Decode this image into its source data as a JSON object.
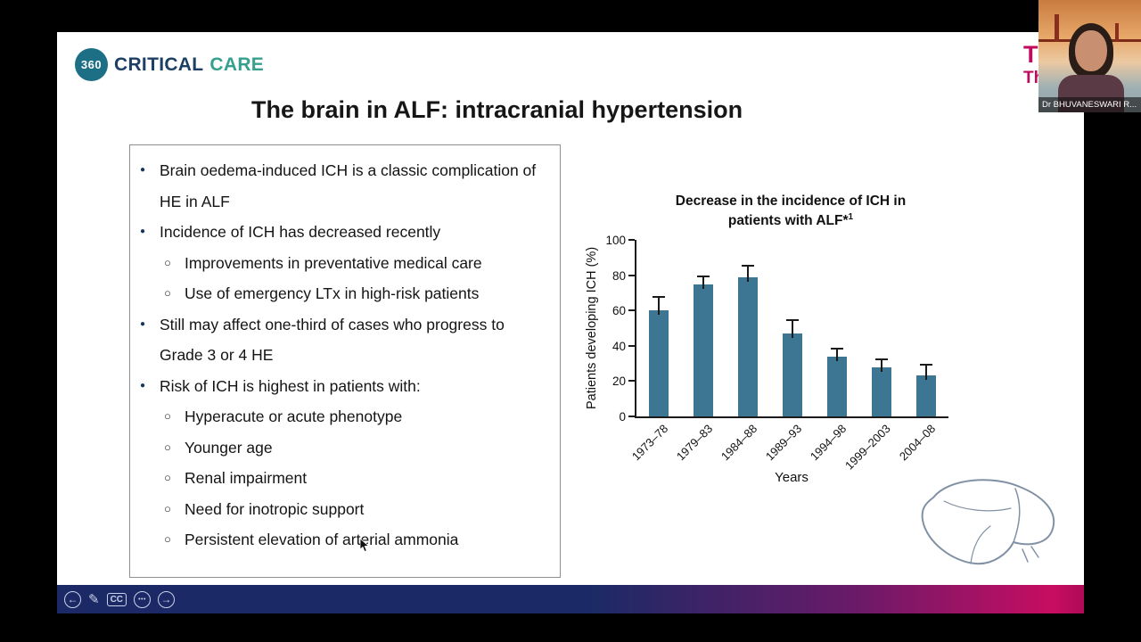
{
  "header": {
    "logo": {
      "circle_text": "360",
      "word1": "CRITICAL",
      "word2": "CARE"
    },
    "partial_logo": {
      "line1": "T",
      "line2": "Th"
    }
  },
  "slide": {
    "title": "The brain in ALF: intracranial hypertension",
    "bullets": [
      {
        "level": 1,
        "text": "Brain oedema-induced ICH is a classic complication of HE in ALF"
      },
      {
        "level": 1,
        "text": "Incidence of ICH has decreased recently"
      },
      {
        "level": 2,
        "text": "Improvements in preventative medical care"
      },
      {
        "level": 2,
        "text": "Use of emergency LTx in high-risk patients"
      },
      {
        "level": 1,
        "text": "Still may affect one-third of cases who progress to Grade 3 or 4 HE"
      },
      {
        "level": 1,
        "text": "Risk of ICH is highest in patients with:"
      },
      {
        "level": 2,
        "text": "Hyperacute or acute phenotype"
      },
      {
        "level": 2,
        "text": "Younger age"
      },
      {
        "level": 2,
        "text": "Renal impairment"
      },
      {
        "level": 2,
        "text": "Need for inotropic support"
      },
      {
        "level": 2,
        "text": "Persistent elevation of arterial ammonia"
      }
    ]
  },
  "chart_data": {
    "type": "bar",
    "title": "Decrease in the incidence of ICH in patients with ALF*",
    "title_sup": "1",
    "categories": [
      "1973–78",
      "1979–83",
      "1984–88",
      "1989–93",
      "1994–98",
      "1999–2003",
      "2004–08"
    ],
    "values": [
      60,
      75,
      79,
      47,
      34,
      28,
      23
    ],
    "error_plus": [
      8,
      5,
      7,
      8,
      5,
      5,
      7
    ],
    "xlabel": "Years",
    "ylabel": "Patients developing ICH (%)",
    "ylim": [
      0,
      100
    ],
    "yticks": [
      0,
      20,
      40,
      60,
      80,
      100
    ],
    "bar_color": "#3c7693",
    "grid": false,
    "legend": "none"
  },
  "toolbar": {
    "cc_label": "CC",
    "icons": {
      "prev": "←",
      "pencil": "✎",
      "more": "•••",
      "next": "→"
    }
  },
  "webcam": {
    "name_label": "Dr BHUVANESWARI R..."
  },
  "colors": {
    "toolbar_navy": "#1b2a66",
    "toolbar_magenta": "#c70d62",
    "logo_teal": "#1d6f86",
    "logo_navy": "#1d3f63",
    "logo_green": "#35a08e",
    "partial_logo_magenta": "#c00a5e",
    "bar_teal": "#3c7693"
  }
}
